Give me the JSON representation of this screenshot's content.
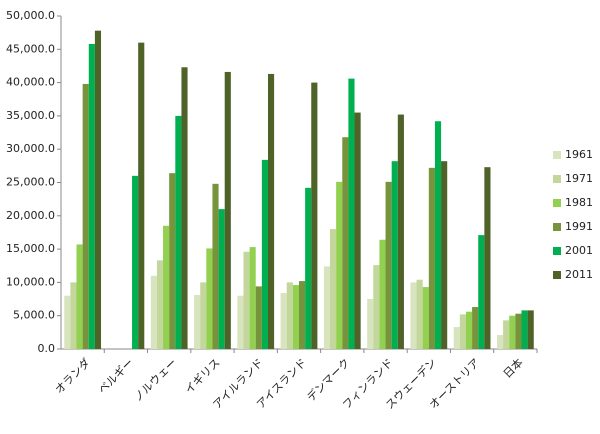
{
  "chart_data": {
    "type": "bar",
    "categories": [
      "オランダ",
      "ベルギー",
      "ノルウェー",
      "イギリス",
      "アイルランド",
      "アイスランド",
      "デンマーク",
      "フィンランド",
      "スウェーデン",
      "オーストリア",
      "日本"
    ],
    "series": [
      {
        "name": "1961",
        "color": "#d7e4bd",
        "values": [
          8000,
          null,
          11000,
          8100,
          8000,
          8400,
          12400,
          7500,
          10000,
          3300,
          2100
        ]
      },
      {
        "name": "1971",
        "color": "#c3d69b",
        "values": [
          10000,
          null,
          13300,
          10000,
          14600,
          10000,
          18000,
          12600,
          10400,
          5200,
          4300
        ]
      },
      {
        "name": "1981",
        "color": "#92d050",
        "values": [
          15700,
          null,
          18500,
          15100,
          15300,
          9600,
          25100,
          16400,
          9300,
          5600,
          5000
        ]
      },
      {
        "name": "1991",
        "color": "#77933c",
        "values": [
          39800,
          null,
          26400,
          24800,
          9400,
          10200,
          31800,
          25100,
          27200,
          6300,
          5300
        ]
      },
      {
        "name": "2001",
        "color": "#00b050",
        "values": [
          45800,
          26000,
          35000,
          21000,
          28400,
          24200,
          40600,
          28200,
          34200,
          17100,
          5800
        ]
      },
      {
        "name": "2011",
        "color": "#4f6228",
        "values": [
          47800,
          46000,
          42300,
          41600,
          41300,
          40000,
          35500,
          35200,
          28200,
          27300,
          5800
        ]
      }
    ],
    "ylim": [
      0,
      50000
    ],
    "yticks": [
      {
        "value": 0,
        "label": "0.0"
      },
      {
        "value": 5000,
        "label": "5,000.0"
      },
      {
        "value": 10000,
        "label": "10,000.0"
      },
      {
        "value": 15000,
        "label": "15,000.0"
      },
      {
        "value": 20000,
        "label": "20,000.0"
      },
      {
        "value": 25000,
        "label": "25,000.0"
      },
      {
        "value": 30000,
        "label": "30,000.0"
      },
      {
        "value": 35000,
        "label": "35,000.0"
      },
      {
        "value": 40000,
        "label": "40,000.0"
      },
      {
        "value": 45000,
        "label": "45,000.0"
      },
      {
        "value": 50000,
        "label": "50,000.0"
      }
    ],
    "grid": false,
    "legend": "right"
  }
}
